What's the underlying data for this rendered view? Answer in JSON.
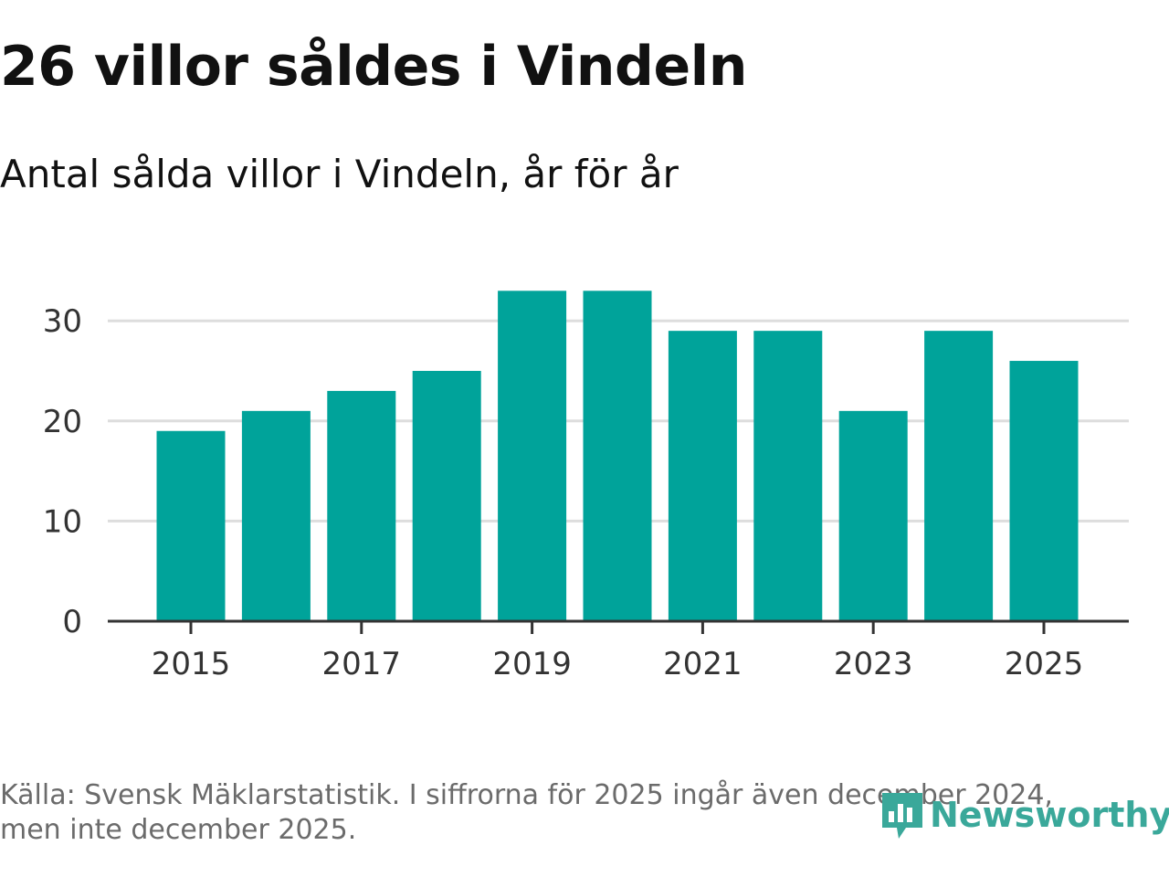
{
  "title": "26 villor såldes i Vindeln",
  "subtitle": "Antal sålda villor i Vindeln, år för år",
  "footnote": {
    "line1": "Källa: Svensk Mäklarstatistik. I siffrorna för 2025 ingår även december 2024,",
    "line2": "men inte december 2025."
  },
  "brand": {
    "name": "Newsworthy",
    "color": "#3aa89a"
  },
  "colors": {
    "bar": "#00a39a",
    "grid": "#dddddd",
    "axis": "#333333",
    "tick_text": "#333333"
  },
  "chart_data": {
    "type": "bar",
    "title": "Antal sålda villor i Vindeln, år för år",
    "xlabel": "",
    "ylabel": "",
    "categories": [
      "2015",
      "2016",
      "2017",
      "2018",
      "2019",
      "2020",
      "2021",
      "2022",
      "2023",
      "2024",
      "2025"
    ],
    "values": [
      19,
      21,
      23,
      25,
      33,
      33,
      29,
      29,
      21,
      29,
      26
    ],
    "ylim": [
      0,
      35
    ],
    "yticks": [
      0,
      10,
      20,
      30
    ],
    "xtick_labels": [
      "2015",
      "2017",
      "2019",
      "2021",
      "2023",
      "2025"
    ],
    "grid": true,
    "legend": "none"
  }
}
